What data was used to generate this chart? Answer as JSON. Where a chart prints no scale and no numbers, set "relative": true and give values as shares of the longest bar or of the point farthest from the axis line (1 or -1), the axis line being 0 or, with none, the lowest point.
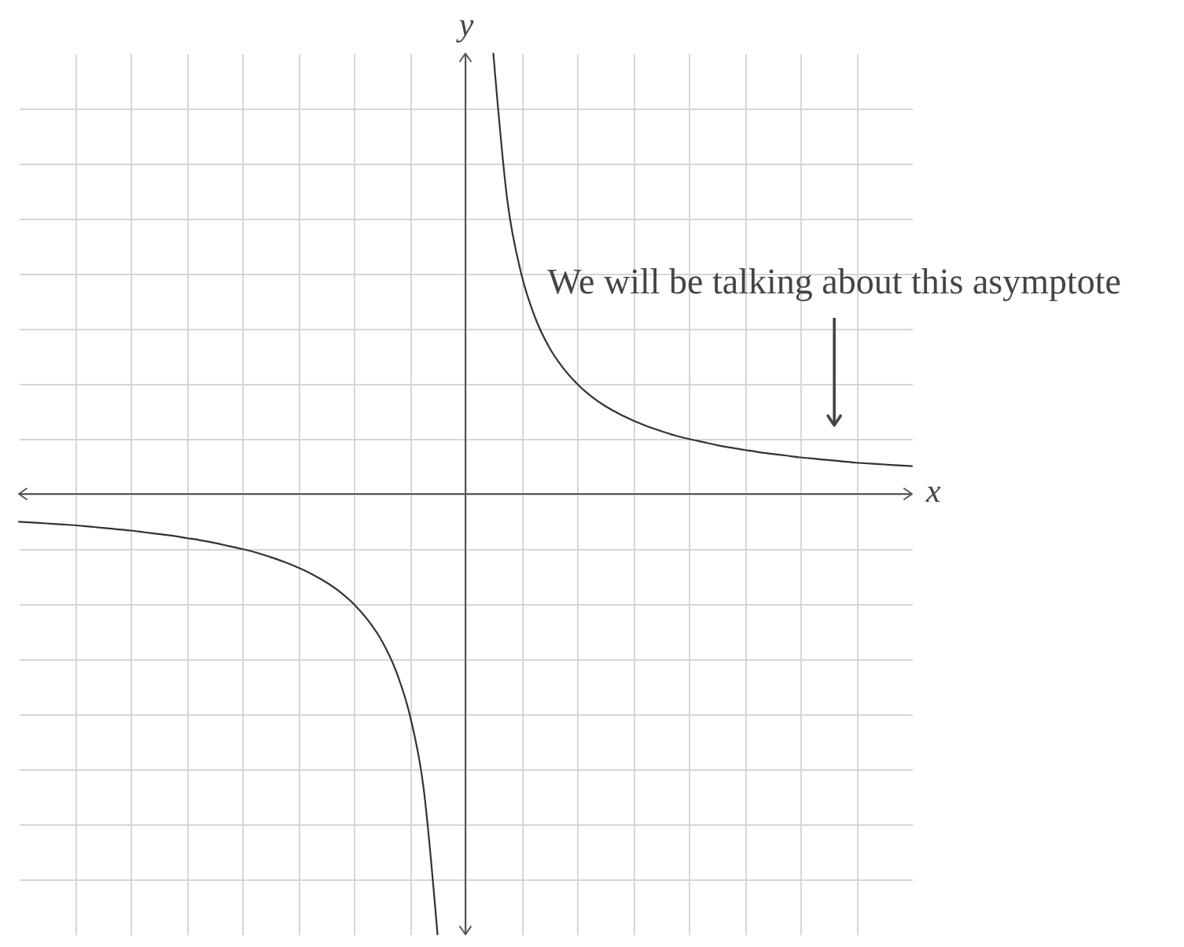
{
  "chart_data": {
    "type": "line",
    "relative": true,
    "categories": [
      null,
      null,
      null,
      null,
      null,
      null,
      null,
      null,
      null,
      null,
      null,
      null,
      null,
      null,
      null,
      null,
      null,
      null,
      null,
      null,
      null,
      null,
      null,
      null,
      null,
      null,
      null,
      null,
      null,
      null,
      null,
      null,
      null,
      null,
      null,
      null,
      null,
      null,
      null,
      null,
      null,
      null,
      null,
      null,
      null,
      null,
      null,
      null,
      null,
      null,
      null,
      null,
      null,
      null,
      null,
      null,
      null,
      null,
      null,
      null,
      null,
      null,
      null,
      null,
      null
    ],
    "series": [
      {
        "color": "#333333",
        "values": [
          -0.063,
          -0.065,
          -0.067,
          -0.069,
          -0.071,
          -0.074,
          -0.077,
          -0.08,
          -0.083,
          -0.087,
          -0.091,
          -0.095,
          -0.1,
          -0.105,
          -0.111,
          -0.118,
          -0.125,
          -0.133,
          -0.143,
          -0.154,
          -0.167,
          -0.182,
          -0.2,
          -0.222,
          -0.25,
          -0.286,
          -0.333,
          -0.4,
          -0.5,
          -0.667,
          -1,
          null,
          null,
          null,
          null,
          null,
          null,
          null,
          null,
          null,
          null,
          null,
          null,
          null,
          null,
          null,
          null,
          null,
          null,
          null,
          null,
          null,
          null,
          null,
          null,
          null,
          null,
          null,
          null,
          null,
          null,
          null,
          null,
          null,
          null
        ]
      },
      {
        "color": "#333333",
        "values": [
          null,
          null,
          null,
          null,
          null,
          null,
          null,
          null,
          null,
          null,
          null,
          null,
          null,
          null,
          null,
          null,
          null,
          null,
          null,
          null,
          null,
          null,
          null,
          null,
          null,
          null,
          null,
          null,
          null,
          null,
          null,
          null,
          null,
          null,
          1,
          0.667,
          0.5,
          0.4,
          0.333,
          0.286,
          0.25,
          0.222,
          0.2,
          0.182,
          0.167,
          0.154,
          0.143,
          0.133,
          0.125,
          0.118,
          0.111,
          0.105,
          0.1,
          0.095,
          0.091,
          0.087,
          0.083,
          0.08,
          0.077,
          0.074,
          0.071,
          0.069,
          0.067,
          0.065,
          0.063
        ]
      }
    ],
    "ylabel": "y",
    "ref_lines": [
      {
        "axis": "y",
        "value": 0,
        "label": "x",
        "color": "#555555"
      }
    ],
    "annotations": [
      "We will be talking about this asymptote"
    ],
    "grid": true
  }
}
